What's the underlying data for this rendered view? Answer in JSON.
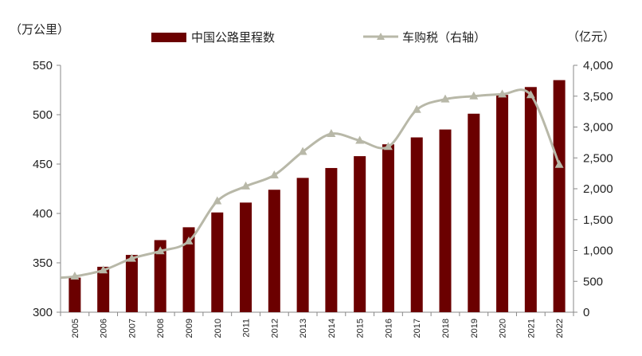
{
  "chart_data": {
    "type": "bar",
    "categories": [
      "2005",
      "2006",
      "2007",
      "2008",
      "2009",
      "2010",
      "2011",
      "2012",
      "2013",
      "2014",
      "2015",
      "2016",
      "2017",
      "2018",
      "2019",
      "2020",
      "2021",
      "2022"
    ],
    "series": [
      {
        "name": "中国公路里程数",
        "type": "bar",
        "axis": "left",
        "color": "#6b0000",
        "values": [
          335,
          346,
          358,
          373,
          386,
          401,
          411,
          424,
          436,
          446,
          458,
          470,
          477,
          485,
          501,
          520,
          528,
          535
        ]
      },
      {
        "name": "车购税（右轴）",
        "type": "line",
        "axis": "right",
        "color": "#b8b8a8",
        "values": [
          580,
          680,
          870,
          990,
          1150,
          1800,
          2040,
          2220,
          2600,
          2890,
          2780,
          2680,
          3280,
          3450,
          3500,
          3530,
          3520,
          2390
        ]
      }
    ],
    "left_axis": {
      "unit_label": "（万公里）",
      "ylim": [
        300,
        550
      ],
      "ticks": [
        300,
        350,
        400,
        450,
        500,
        550
      ],
      "tick_labels": [
        "300",
        "350",
        "400",
        "450",
        "500",
        "550"
      ]
    },
    "right_axis": {
      "unit_label": "（亿元）",
      "ylim": [
        0,
        4000
      ],
      "ticks": [
        0,
        500,
        1000,
        1500,
        2000,
        2500,
        3000,
        3500,
        4000
      ],
      "tick_labels": [
        "0",
        "500",
        "1,000",
        "1,500",
        "2,000",
        "2,500",
        "3,000",
        "3,500",
        "4,000"
      ]
    },
    "legend": {
      "position": "top-center"
    },
    "grid": false
  }
}
